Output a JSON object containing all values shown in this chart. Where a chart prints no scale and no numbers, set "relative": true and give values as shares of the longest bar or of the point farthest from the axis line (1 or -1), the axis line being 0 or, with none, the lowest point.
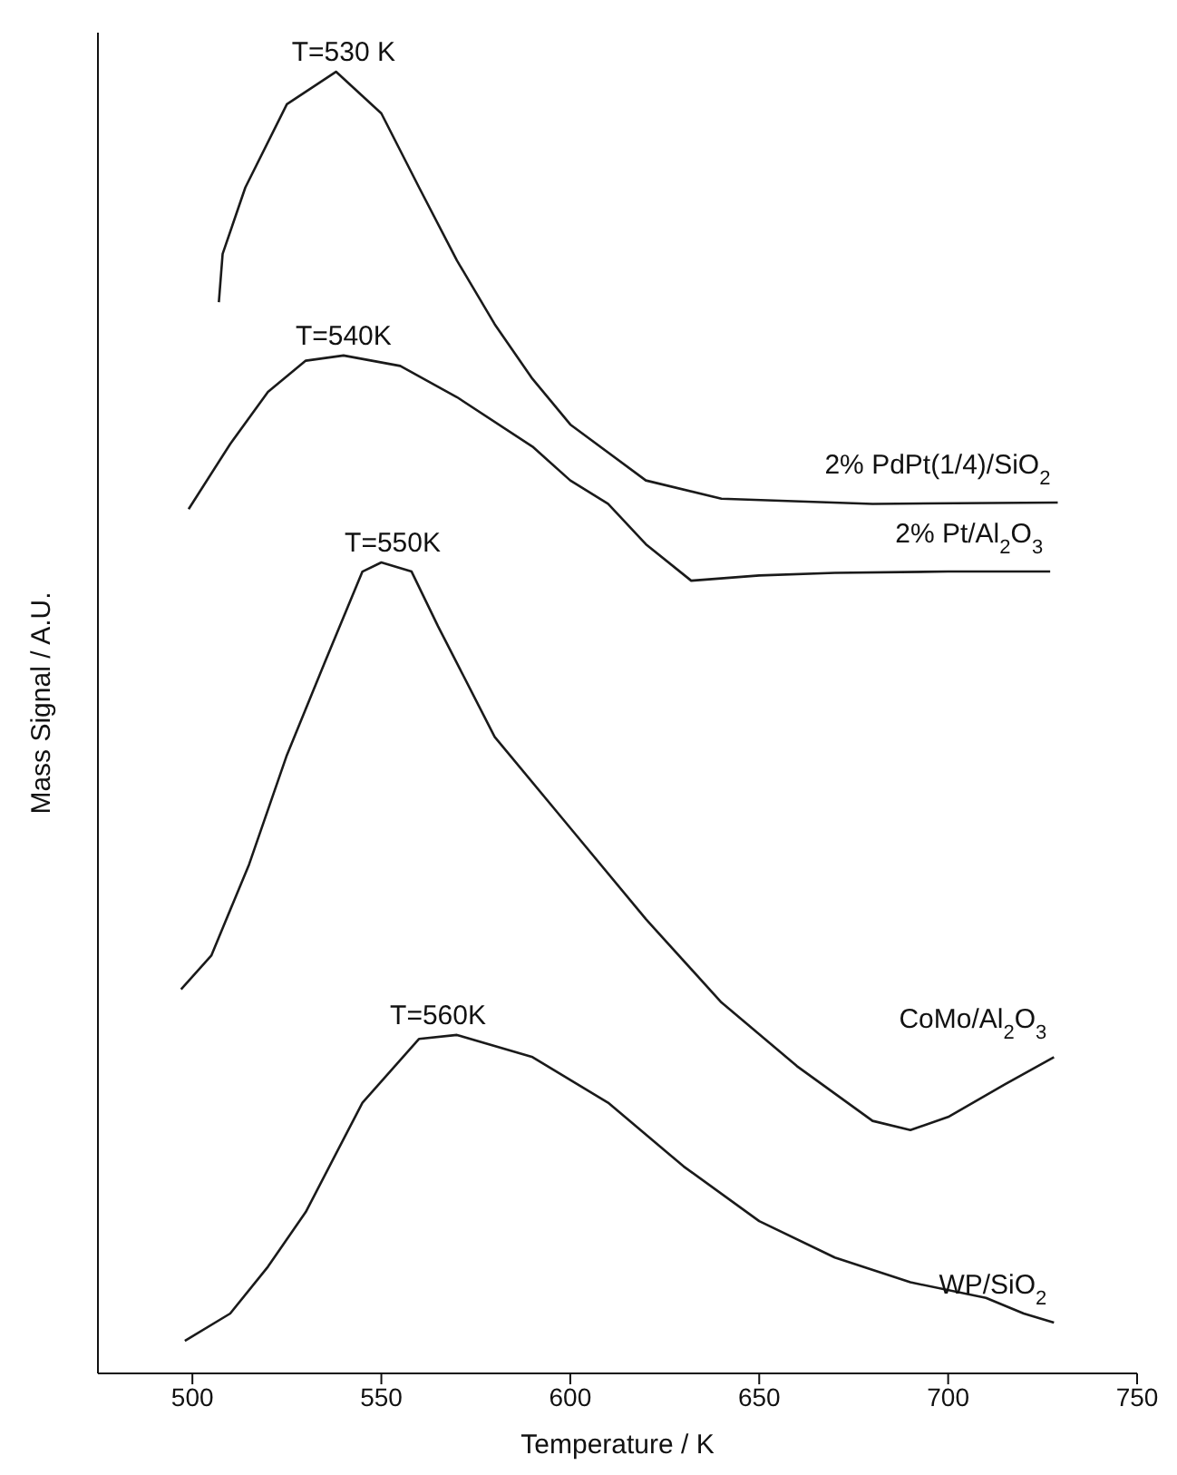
{
  "chart_data": {
    "type": "line",
    "relative": true,
    "xlabel": "Temperature / K",
    "ylabel": "Mass Signal / A.U.",
    "xlim": [
      475,
      750
    ],
    "xticks": [
      500,
      550,
      600,
      650,
      700,
      750
    ],
    "legend": false,
    "grid": false,
    "marker": "none",
    "line_style": "solid",
    "series": [
      {
        "name": "2% PdPt(1/4)/SiO$_{2}$",
        "color": "#1a1a1a",
        "x": [
          507,
          508,
          514,
          525,
          538,
          550,
          560,
          570,
          580,
          590,
          600,
          620,
          640,
          680,
          729
        ],
        "values": [
          0.823,
          0.86,
          0.911,
          0.975,
          1,
          0.968,
          0.911,
          0.855,
          0.806,
          0.764,
          0.729,
          0.686,
          0.672,
          0.668,
          0.669
        ]
      },
      {
        "name": "2% Pt/Al$_{2}$O$_{3}$",
        "color": "#1a1a1a",
        "x": [
          499,
          510,
          520,
          530,
          540,
          555,
          570,
          590,
          600,
          610,
          620,
          632,
          650,
          670,
          700,
          727
        ],
        "values": [
          0.664,
          0.714,
          0.754,
          0.778,
          0.782,
          0.774,
          0.75,
          0.712,
          0.686,
          0.668,
          0.637,
          0.609,
          0.613,
          0.615,
          0.616,
          0.616
        ]
      },
      {
        "name": "CoMo/Al$_{2}$O$_{3}$",
        "color": "#1a1a1a",
        "x": [
          497,
          505,
          515,
          525,
          535,
          545,
          550,
          558,
          565,
          580,
          600,
          620,
          640,
          660,
          680,
          690,
          700,
          715,
          728
        ],
        "values": [
          0.295,
          0.321,
          0.391,
          0.475,
          0.546,
          0.616,
          0.623,
          0.616,
          0.574,
          0.489,
          0.419,
          0.349,
          0.285,
          0.236,
          0.194,
          0.187,
          0.197,
          0.222,
          0.243
        ]
      },
      {
        "name": "WP/SiO$_{2}$",
        "color": "#1a1a1a",
        "x": [
          498,
          510,
          520,
          530,
          545,
          560,
          570,
          590,
          610,
          630,
          650,
          670,
          690,
          710,
          720,
          728
        ],
        "values": [
          0.025,
          0.046,
          0.082,
          0.124,
          0.208,
          0.257,
          0.26,
          0.243,
          0.208,
          0.159,
          0.117,
          0.089,
          0.07,
          0.058,
          0.046,
          0.039
        ]
      }
    ],
    "annotations": [
      {
        "text": "T=530 K",
        "x": 540,
        "y": 1
      },
      {
        "text": "T=540K",
        "x": 540,
        "y": 0.782
      },
      {
        "text": "T=550K",
        "x": 553,
        "y": 0.623
      },
      {
        "text": "T=560K",
        "x": 565,
        "y": 0.26
      }
    ]
  }
}
